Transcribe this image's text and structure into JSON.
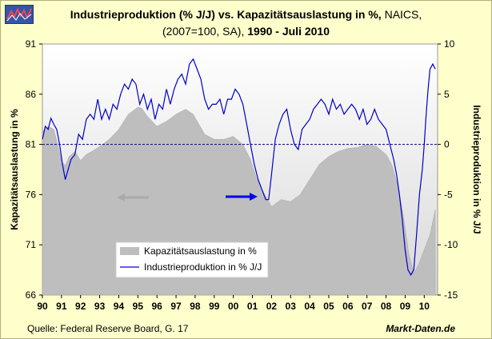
{
  "header": {
    "title_bold": "Industrieproduktion (% J/J) vs. Kapazitätsauslastung in %,",
    "title_normal": " NAICS,",
    "subtitle_normal": "(2007=100, SA),",
    "subtitle_bold": " 1990 - Juli 2010"
  },
  "footer": {
    "source": "Quelle: Federal Reserve Board, G. 17",
    "brand": "Markt-Daten.de"
  },
  "colors": {
    "background": "#ffffcc",
    "plot_area": "#ffffff",
    "plot_gradient_bottom": "#d8d8d8",
    "area_fill": "#bebebe",
    "line": "#0000cc",
    "zero_line": "#000080",
    "arrow_left": "#aaaaaa",
    "arrow_right": "#0000ee"
  },
  "chart_data": {
    "type": "area+line",
    "x_tick_labels": [
      "90",
      "91",
      "92",
      "93",
      "94",
      "95",
      "96",
      "97",
      "98",
      "99",
      "00",
      "01",
      "02",
      "03",
      "04",
      "05",
      "06",
      "07",
      "08",
      "09",
      "10"
    ],
    "x_range": [
      1990,
      2010.7
    ],
    "left_axis": {
      "label": "Kapazitätsauslastung in %",
      "ticks": [
        66,
        71,
        76,
        81,
        86,
        91
      ],
      "range": [
        66,
        91
      ]
    },
    "right_axis": {
      "label": "Industrieproduktion in % J/J",
      "ticks": [
        -15,
        -10,
        -5,
        0,
        5,
        10
      ],
      "range": [
        -15,
        10
      ]
    },
    "legend": [
      "Kapazitätsauslastung in %",
      "Industrieproduktion in % J/J"
    ],
    "legend_position": "bottom-left",
    "series": [
      {
        "name": "Kapazitätsauslastung in %",
        "axis": "left",
        "style": "area",
        "x": [
          1990.0,
          1990.3,
          1990.6,
          1990.8,
          1991.0,
          1991.2,
          1991.4,
          1991.7,
          1992.0,
          1992.3,
          1992.6,
          1993.0,
          1993.5,
          1994.0,
          1994.5,
          1995.0,
          1995.2,
          1995.5,
          1995.8,
          1996.0,
          1996.5,
          1997.0,
          1997.5,
          1997.9,
          1998.2,
          1998.5,
          1999.0,
          1999.5,
          2000.0,
          2000.5,
          2000.9,
          2001.2,
          2001.5,
          2001.8,
          2002.0,
          2002.5,
          2003.0,
          2003.5,
          2004.0,
          2004.5,
          2005.0,
          2005.5,
          2006.0,
          2006.5,
          2007.0,
          2007.5,
          2008.0,
          2008.3,
          2008.6,
          2008.9,
          2009.2,
          2009.45,
          2009.7,
          2010.0,
          2010.3,
          2010.58
        ],
        "values": [
          82.3,
          82.8,
          82.5,
          81.0,
          79.3,
          78.9,
          79.8,
          80.3,
          79.4,
          80.0,
          80.3,
          80.8,
          81.5,
          82.5,
          84.0,
          84.7,
          84.6,
          83.8,
          83.2,
          82.8,
          83.3,
          84.0,
          84.5,
          84.0,
          83.0,
          82.0,
          81.5,
          81.5,
          81.8,
          81.0,
          79.5,
          77.7,
          76.5,
          75.5,
          74.8,
          75.5,
          75.3,
          76.0,
          77.5,
          79.0,
          79.8,
          80.3,
          80.6,
          80.7,
          81.0,
          80.8,
          80.0,
          79.0,
          77.0,
          74.0,
          70.0,
          68.2,
          69.0,
          70.5,
          72.0,
          74.5
        ]
      },
      {
        "name": "Industrieproduktion in % J/J",
        "axis": "right",
        "style": "line",
        "x": [
          1990.0,
          1990.15,
          1990.3,
          1990.45,
          1990.6,
          1990.75,
          1990.9,
          1991.05,
          1991.2,
          1991.35,
          1991.5,
          1991.7,
          1991.9,
          1992.1,
          1992.3,
          1992.5,
          1992.7,
          1992.9,
          1993.1,
          1993.3,
          1993.5,
          1993.7,
          1993.9,
          1994.1,
          1994.3,
          1994.5,
          1994.7,
          1994.9,
          1995.1,
          1995.3,
          1995.5,
          1995.7,
          1995.9,
          1996.1,
          1996.3,
          1996.5,
          1996.7,
          1996.9,
          1997.1,
          1997.3,
          1997.5,
          1997.7,
          1997.9,
          1998.1,
          1998.3,
          1998.5,
          1998.7,
          1998.9,
          1999.1,
          1999.3,
          1999.5,
          1999.7,
          1999.9,
          2000.1,
          2000.3,
          2000.5,
          2000.7,
          2000.9,
          2001.1,
          2001.3,
          2001.5,
          2001.7,
          2001.85,
          2002.0,
          2002.2,
          2002.4,
          2002.6,
          2002.8,
          2003.0,
          2003.2,
          2003.4,
          2003.6,
          2003.8,
          2004.0,
          2004.2,
          2004.4,
          2004.6,
          2004.8,
          2005.0,
          2005.2,
          2005.4,
          2005.6,
          2005.8,
          2006.0,
          2006.2,
          2006.4,
          2006.6,
          2006.8,
          2007.0,
          2007.2,
          2007.4,
          2007.6,
          2007.8,
          2008.0,
          2008.2,
          2008.4,
          2008.55,
          2008.7,
          2008.85,
          2009.0,
          2009.15,
          2009.3,
          2009.45,
          2009.6,
          2009.75,
          2009.9,
          2010.0,
          2010.1,
          2010.2,
          2010.3,
          2010.45,
          2010.58
        ],
        "values": [
          0.5,
          1.8,
          1.5,
          2.6,
          2.0,
          1.5,
          0.0,
          -2.0,
          -3.5,
          -2.5,
          -1.5,
          -1.0,
          1.0,
          0.5,
          2.5,
          3.0,
          2.5,
          4.5,
          2.5,
          3.5,
          2.5,
          4.0,
          3.5,
          5.0,
          6.0,
          5.5,
          6.5,
          6.0,
          4.0,
          5.0,
          3.5,
          4.5,
          2.5,
          4.0,
          3.5,
          5.5,
          4.0,
          5.5,
          6.5,
          7.0,
          6.0,
          8.0,
          8.5,
          7.5,
          6.5,
          4.5,
          3.5,
          4.0,
          4.0,
          4.5,
          3.0,
          4.5,
          4.5,
          5.5,
          5.0,
          4.0,
          2.0,
          0.0,
          -2.0,
          -3.5,
          -4.5,
          -5.5,
          -5.5,
          -3.0,
          0.5,
          2.0,
          3.0,
          3.5,
          1.5,
          0.0,
          -0.5,
          1.5,
          2.0,
          2.5,
          3.5,
          4.0,
          4.5,
          4.0,
          3.0,
          4.5,
          3.5,
          4.0,
          3.0,
          3.5,
          4.0,
          3.5,
          2.5,
          3.5,
          2.0,
          2.5,
          3.5,
          2.5,
          2.0,
          1.5,
          0.0,
          -1.5,
          -3.0,
          -5.0,
          -7.5,
          -10.5,
          -12.5,
          -13.0,
          -12.5,
          -9.0,
          -5.0,
          -2.5,
          0.0,
          3.0,
          5.5,
          7.5,
          8.0,
          7.5
        ]
      }
    ]
  }
}
